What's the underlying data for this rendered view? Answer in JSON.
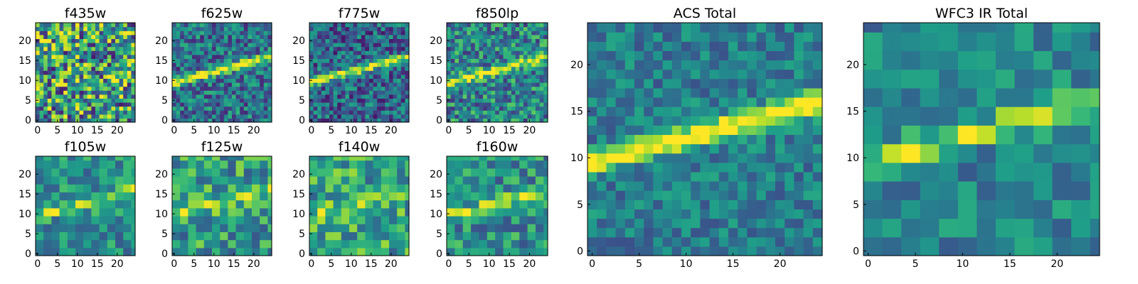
{
  "chart_data": [
    {
      "type": "heatmap",
      "title": "f435w",
      "grid": 25,
      "xticks": [
        0,
        5,
        10,
        15,
        20
      ],
      "yticks": [
        0,
        5,
        10,
        15,
        20
      ],
      "streak": {
        "strength": 0.0,
        "width": 1.0
      },
      "noise": 0.95,
      "base": 0.55,
      "pixel": 1,
      "seed": 11
    },
    {
      "type": "heatmap",
      "title": "f625w",
      "grid": 25,
      "xticks": [
        0,
        5,
        10,
        15,
        20
      ],
      "yticks": [
        0,
        5,
        10,
        15,
        20
      ],
      "streak": {
        "strength": 1.0,
        "width": 1.1
      },
      "noise": 0.55,
      "base": 0.38,
      "pixel": 1,
      "seed": 23
    },
    {
      "type": "heatmap",
      "title": "f775w",
      "grid": 25,
      "xticks": [
        0,
        5,
        10,
        15,
        20
      ],
      "yticks": [
        0,
        5,
        10,
        15,
        20
      ],
      "streak": {
        "strength": 1.0,
        "width": 1.0
      },
      "noise": 0.55,
      "base": 0.33,
      "pixel": 1,
      "seed": 37
    },
    {
      "type": "heatmap",
      "title": "f850lp",
      "grid": 25,
      "xticks": [
        0,
        5,
        10,
        15,
        20
      ],
      "yticks": [
        0,
        5,
        10,
        15,
        20
      ],
      "streak": {
        "strength": 0.85,
        "width": 1.1
      },
      "noise": 0.6,
      "base": 0.45,
      "pixel": 1,
      "seed": 41
    },
    {
      "type": "heatmap",
      "title": "f105w",
      "grid": 25,
      "xticks": [
        0,
        5,
        10,
        15,
        20
      ],
      "yticks": [
        0,
        5,
        10,
        15,
        20
      ],
      "streak": {
        "strength": 0.55,
        "width": 1.3
      },
      "noise": 0.45,
      "base": 0.5,
      "pixel": 2,
      "seed": 53
    },
    {
      "type": "heatmap",
      "title": "f125w",
      "grid": 25,
      "xticks": [
        0,
        5,
        10,
        15,
        20
      ],
      "yticks": [
        0,
        5,
        10,
        15,
        20
      ],
      "streak": {
        "strength": 0.5,
        "width": 1.3
      },
      "noise": 0.55,
      "base": 0.55,
      "pixel": 2,
      "seed": 67
    },
    {
      "type": "heatmap",
      "title": "f140w",
      "grid": 25,
      "xticks": [
        0,
        5,
        10,
        15,
        20
      ],
      "yticks": [
        0,
        5,
        10,
        15,
        20
      ],
      "streak": {
        "strength": 0.45,
        "width": 1.3
      },
      "noise": 0.55,
      "base": 0.58,
      "pixel": 2,
      "seed": 71
    },
    {
      "type": "heatmap",
      "title": "f160w",
      "grid": 25,
      "xticks": [
        0,
        5,
        10,
        15,
        20
      ],
      "yticks": [
        0,
        5,
        10,
        15,
        20
      ],
      "streak": {
        "strength": 0.6,
        "width": 1.3
      },
      "noise": 0.5,
      "base": 0.5,
      "pixel": 2,
      "seed": 83
    },
    {
      "type": "heatmap",
      "title": "ACS Total",
      "grid": 25,
      "xticks": [
        0,
        5,
        10,
        15,
        20
      ],
      "yticks": [
        0,
        5,
        10,
        15,
        20
      ],
      "streak": {
        "strength": 1.0,
        "width": 1.2
      },
      "noise": 0.35,
      "base": 0.42,
      "pixel": 1,
      "seed": 97
    },
    {
      "type": "heatmap",
      "title": "WFC3 IR Total",
      "grid": 25,
      "xticks": [
        0,
        5,
        10,
        15,
        20
      ],
      "yticks": [
        0,
        5,
        10,
        15,
        20
      ],
      "streak": {
        "strength": 0.75,
        "width": 1.4
      },
      "noise": 0.35,
      "base": 0.45,
      "pixel": 2,
      "seed": 109
    }
  ],
  "colormap": [
    "#440154",
    "#482878",
    "#3e4a89",
    "#31688e",
    "#26828e",
    "#1f9e89",
    "#35b779",
    "#6ece58",
    "#b5de2b",
    "#fde725"
  ]
}
